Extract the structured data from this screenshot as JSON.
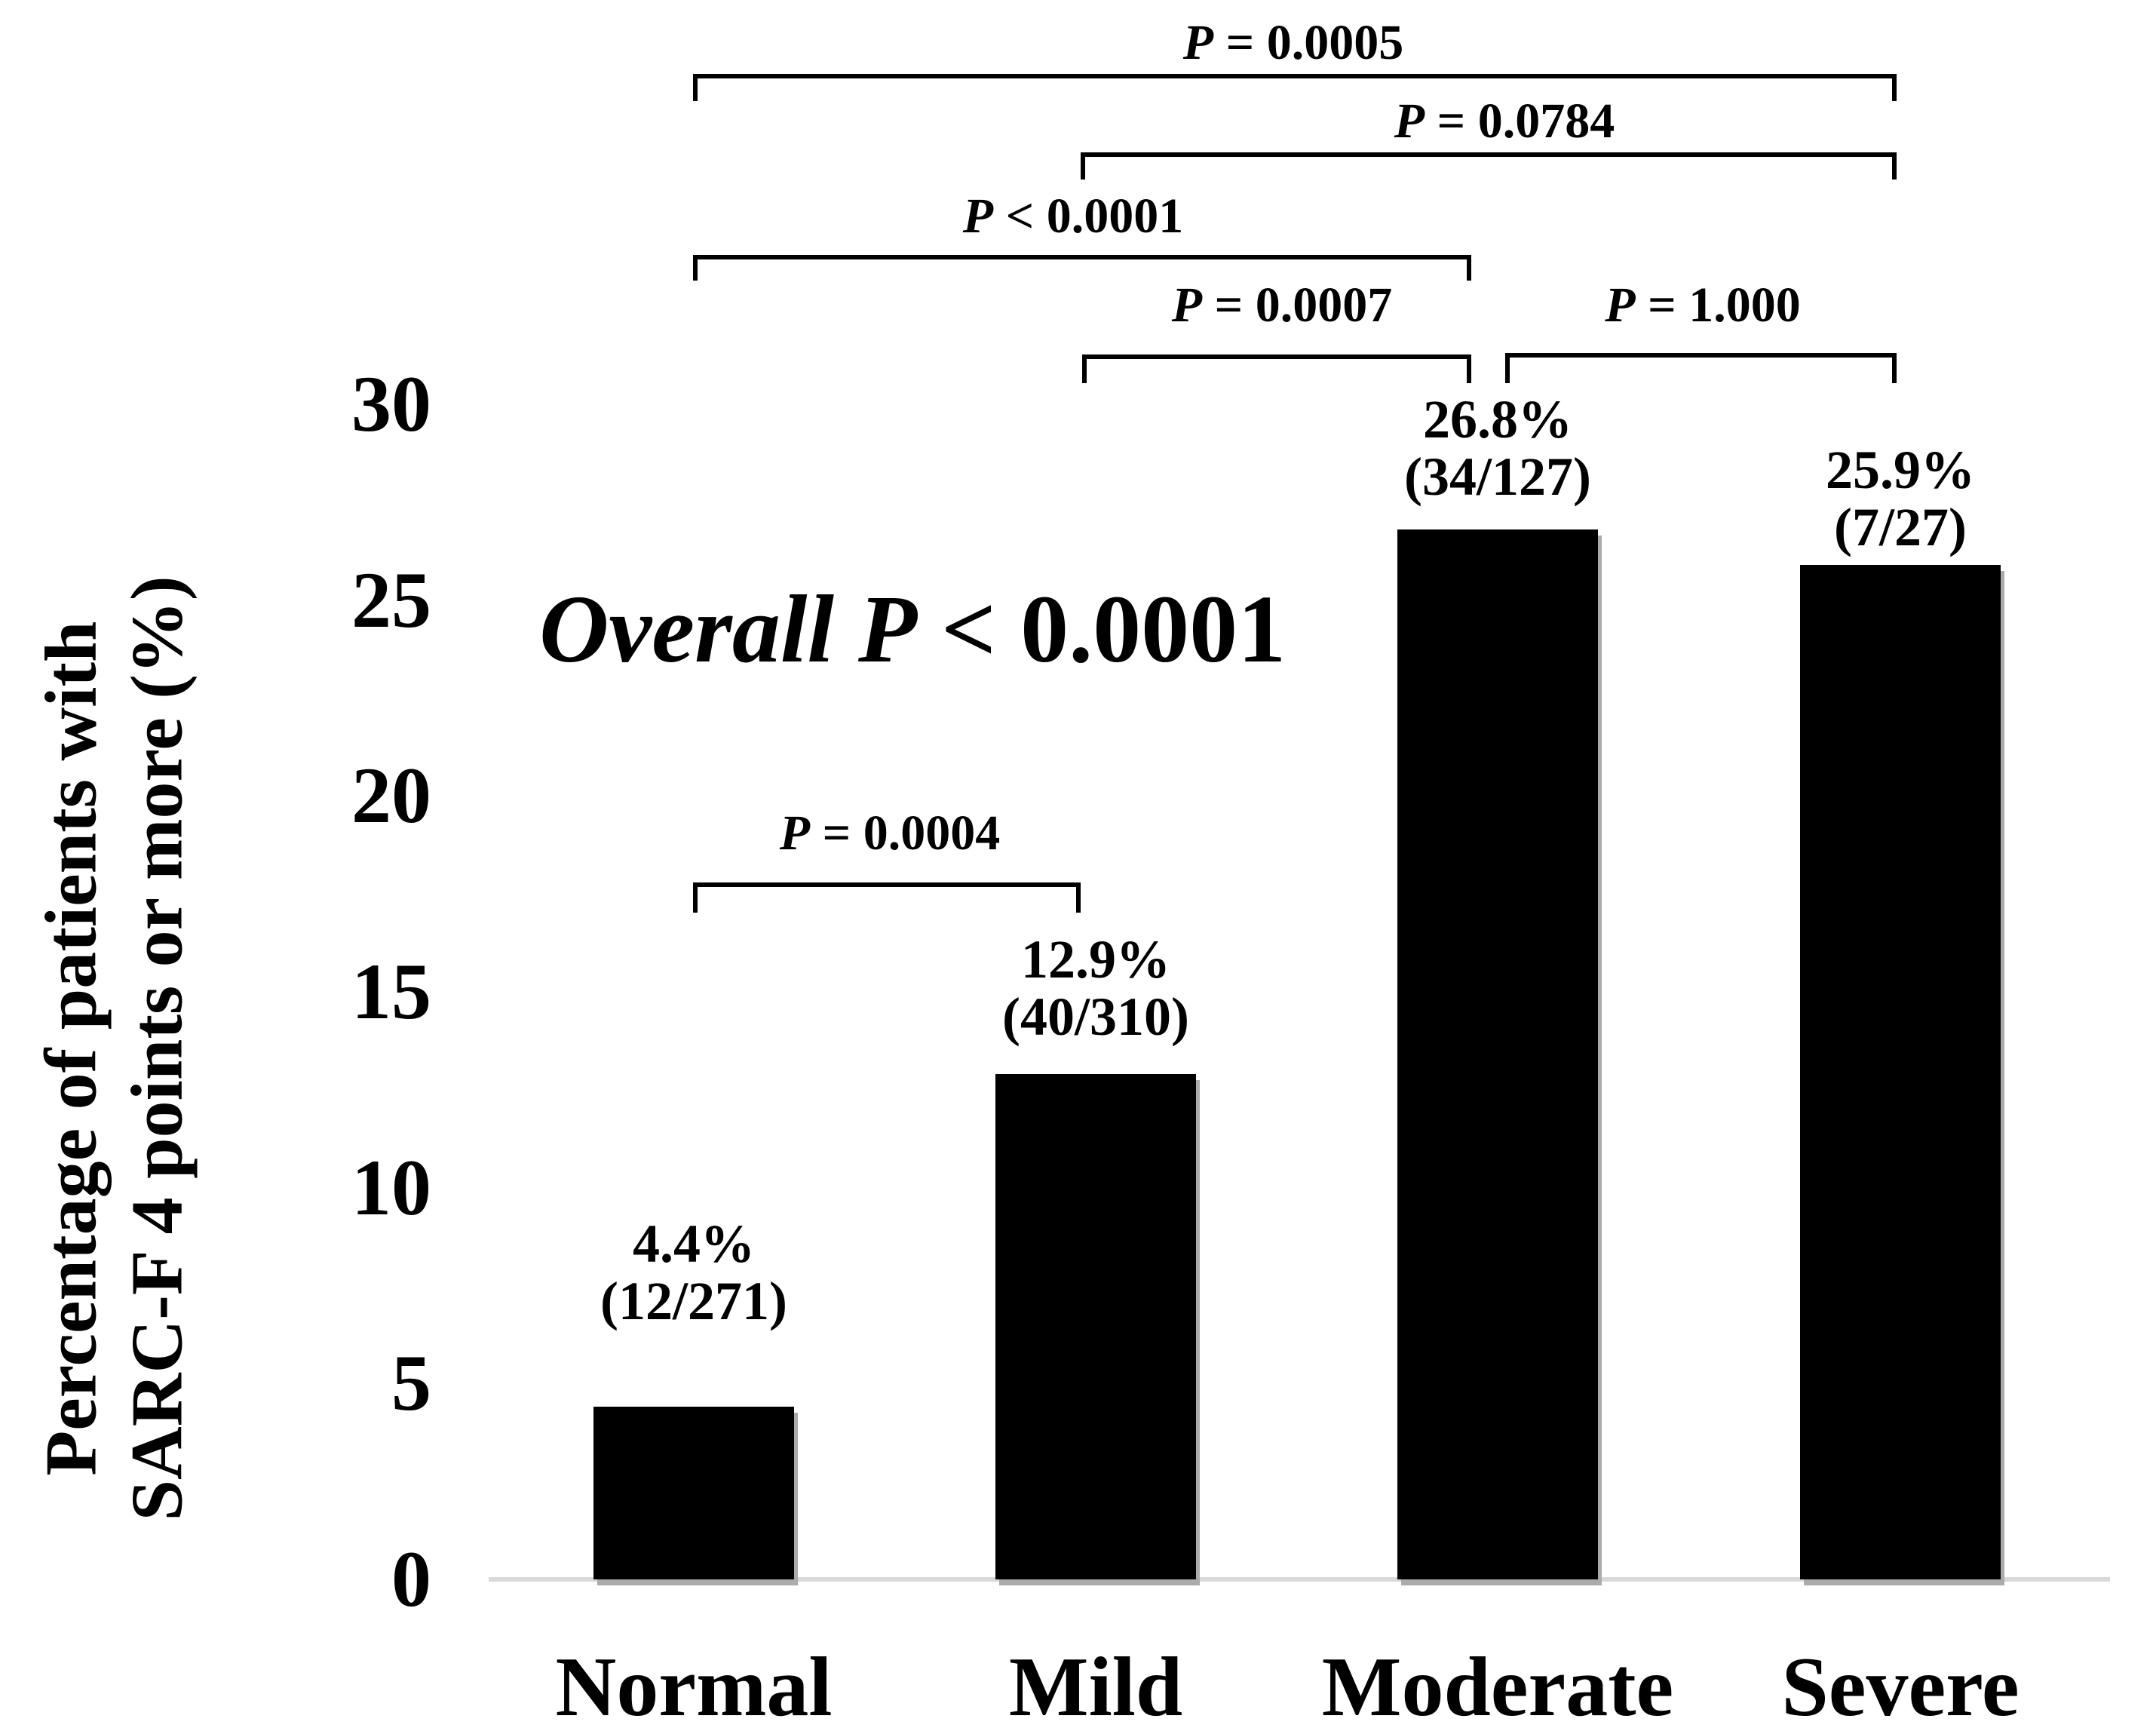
{
  "figure": {
    "y_axis": {
      "title_line1": "Percentage of patients with",
      "title_line2": "SARC-F 4 points or more (%)"
    },
    "overall": {
      "prefix": "Overall P",
      "suffix": "< 0.0001"
    }
  },
  "chart_data": {
    "type": "bar",
    "title": "",
    "xlabel": "",
    "ylabel": "Percentage of patients with SARC-F 4 points or more (%)",
    "ylim": [
      0,
      30
    ],
    "yticks": [
      30,
      25,
      20,
      15,
      10,
      5,
      0
    ],
    "grid": false,
    "bar_color": "#000000",
    "categories": [
      "Normal",
      "Mild",
      "Moderate",
      "Severe"
    ],
    "values": [
      4.4,
      12.9,
      26.8,
      25.9
    ],
    "bar_labels": [
      {
        "percent": "4.4%",
        "fraction": "(12/271)"
      },
      {
        "percent": "12.9%",
        "fraction": "(40/310)"
      },
      {
        "percent": "26.8%",
        "fraction": "(34/127)"
      },
      {
        "percent": "25.9%",
        "fraction": "(7/27)"
      }
    ],
    "overall_p": "Overall P < 0.0001",
    "comparisons": [
      {
        "label": "P = 0.0005",
        "from": "Normal",
        "to": "Severe"
      },
      {
        "label": "P = 0.0784",
        "from": "Mild",
        "to": "Severe"
      },
      {
        "label": "P < 0.0001",
        "from": "Normal",
        "to": "Moderate"
      },
      {
        "label": "P = 0.0007",
        "from": "Mild",
        "to": "Moderate"
      },
      {
        "label": "P = 1.000",
        "from": "Moderate",
        "to": "Severe"
      },
      {
        "label": "P = 0.0004",
        "from": "Normal",
        "to": "Mild"
      }
    ]
  }
}
